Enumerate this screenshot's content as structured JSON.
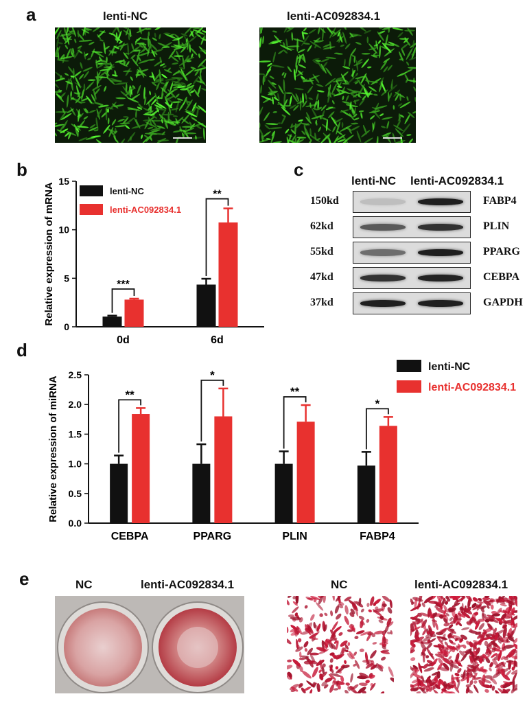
{
  "panels": {
    "a": {
      "letter": "a",
      "titles": [
        "lenti-NC",
        "lenti-AC092834.1"
      ]
    },
    "b": {
      "letter": "b",
      "legend": [
        "lenti-NC",
        "lenti-AC092834.1"
      ]
    },
    "c": {
      "letter": "c",
      "columns": [
        "lenti-NC",
        "lenti-AC092834.1"
      ],
      "rows": [
        {
          "kd": "150kd",
          "protein": "FABP4"
        },
        {
          "kd": "62kd",
          "protein": "PLIN"
        },
        {
          "kd": "55kd",
          "protein": "PPARG"
        },
        {
          "kd": "47kd",
          "protein": "CEBPA"
        },
        {
          "kd": "37kd",
          "protein": "GAPDH"
        }
      ]
    },
    "d": {
      "letter": "d",
      "legend": [
        "lenti-NC",
        "lenti-AC092834.1"
      ]
    },
    "e": {
      "letter": "e",
      "titles": [
        "NC",
        "lenti-AC092834.1",
        "NC",
        "lenti-AC092834.1"
      ]
    }
  },
  "colors": {
    "nc": "#111111",
    "treated": "#e8312f"
  },
  "chart_data": [
    {
      "type": "bar",
      "panel": "b",
      "categories": [
        "0d",
        "6d"
      ],
      "ylabel": "Relative expression of mRNA",
      "ylim": [
        0,
        15
      ],
      "yticks": [
        0,
        5,
        10,
        15
      ],
      "series": [
        {
          "name": "lenti-NC",
          "values": [
            1.05,
            4.35
          ],
          "errors": [
            0.1,
            0.6
          ]
        },
        {
          "name": "lenti-AC092834.1",
          "values": [
            2.8,
            10.75
          ],
          "errors": [
            0.1,
            1.45
          ]
        }
      ],
      "significance": [
        "***",
        "**"
      ],
      "legend": "top-left"
    },
    {
      "type": "bar",
      "panel": "d",
      "categories": [
        "CEBPA",
        "PPARG",
        "PLIN",
        "FABP4"
      ],
      "ylabel": "Relative expression of miRNA",
      "ylim": [
        0,
        2.5
      ],
      "yticks": [
        "0.0",
        "0.5",
        "1.0",
        "1.5",
        "2.0",
        "2.5"
      ],
      "series": [
        {
          "name": "lenti-NC",
          "values": [
            1.0,
            1.0,
            1.0,
            0.97
          ],
          "errors": [
            0.14,
            0.33,
            0.21,
            0.23
          ]
        },
        {
          "name": "lenti-AC092834.1",
          "values": [
            1.84,
            1.8,
            1.71,
            1.64
          ],
          "errors": [
            0.1,
            0.47,
            0.28,
            0.15
          ]
        }
      ],
      "significance": [
        "**",
        "*",
        "**",
        "*"
      ],
      "legend": "top-right"
    }
  ]
}
